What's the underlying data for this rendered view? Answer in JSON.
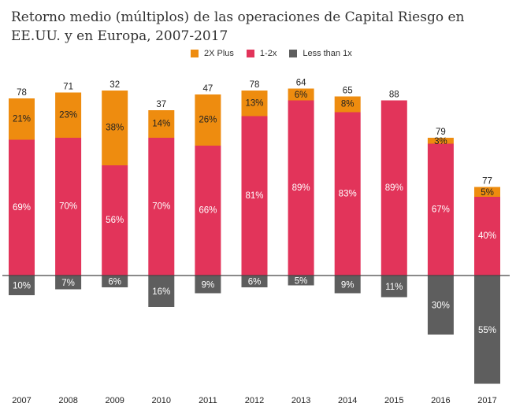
{
  "chart_data": {
    "type": "bar",
    "stacked": true,
    "title": "Retorno medio (múltiplos) de las operaciones de Capital Riesgo en EE.UU. y en Europa, 2007-2017",
    "xlabel": "",
    "ylabel": "",
    "grid": false,
    "legend_position": "top-center",
    "categories": [
      "2007",
      "2008",
      "2009",
      "2010",
      "2011",
      "2012",
      "2013",
      "2014",
      "2015",
      "2016",
      "2017"
    ],
    "totals": [
      78,
      71,
      32,
      37,
      47,
      78,
      64,
      65,
      88,
      79,
      77
    ],
    "series": [
      {
        "name": "2X Plus",
        "color": "#EE8C0F",
        "direction": "up",
        "values": [
          21,
          23,
          38,
          14,
          26,
          13,
          6,
          8,
          0,
          3,
          5
        ]
      },
      {
        "name": "1-2x",
        "color": "#E2345A",
        "direction": "up",
        "values": [
          69,
          70,
          56,
          70,
          66,
          81,
          89,
          83,
          89,
          67,
          40
        ]
      },
      {
        "name": "Less than 1x",
        "color": "#5E5E5E",
        "direction": "down",
        "values": [
          10,
          7,
          6,
          16,
          9,
          6,
          5,
          9,
          11,
          30,
          55
        ]
      }
    ],
    "value_suffix": "%",
    "ylim": [
      -55,
      95
    ]
  },
  "legend": [
    {
      "label": "2X Plus",
      "color": "#EE8C0F"
    },
    {
      "label": "1-2x",
      "color": "#E2345A"
    },
    {
      "label": "Less than 1x",
      "color": "#5E5E5E"
    }
  ],
  "colors": {
    "axis_line": "#444444",
    "label_dark": "#222222",
    "label_light": "#ffffff",
    "total_label": "#222222"
  }
}
